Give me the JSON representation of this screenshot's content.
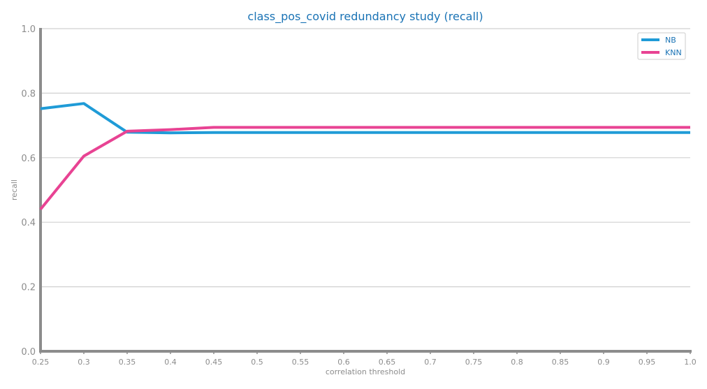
{
  "chart_data": {
    "type": "line",
    "title": "class_pos_covid redundancy study (recall)",
    "xlabel": "correlation threshold",
    "ylabel": "recall",
    "x": [
      0.25,
      0.3,
      0.35,
      0.4,
      0.45,
      0.5,
      0.55,
      0.6,
      0.65,
      0.7,
      0.75,
      0.8,
      0.85,
      0.9,
      0.95,
      1.0
    ],
    "x_tick_labels": [
      "0.25",
      "0.3",
      "0.35",
      "0.4",
      "0.45",
      "0.5",
      "0.55",
      "0.6",
      "0.65",
      "0.7",
      "0.75",
      "0.8",
      "0.85",
      "0.9",
      "0.95",
      "1.0"
    ],
    "y_tick_values": [
      0.0,
      0.2,
      0.4,
      0.6,
      0.8,
      1.0
    ],
    "y_tick_labels": [
      "0.0",
      "0.2",
      "0.4",
      "0.6",
      "0.8",
      "1.0"
    ],
    "xlim": [
      0.25,
      1.0
    ],
    "ylim": [
      0.0,
      1.0
    ],
    "grid": "horizontal",
    "legend_position": "top-right",
    "series": [
      {
        "name": "NB",
        "color": "#1f9bd7",
        "values": [
          0.752,
          0.768,
          0.679,
          0.677,
          0.678,
          0.678,
          0.678,
          0.678,
          0.678,
          0.678,
          0.678,
          0.678,
          0.678,
          0.678,
          0.678,
          0.678
        ]
      },
      {
        "name": "KNN",
        "color": "#e84393",
        "values": [
          0.44,
          0.605,
          0.682,
          0.687,
          0.694,
          0.694,
          0.694,
          0.694,
          0.694,
          0.694,
          0.694,
          0.694,
          0.694,
          0.694,
          0.694,
          0.694
        ]
      }
    ]
  }
}
